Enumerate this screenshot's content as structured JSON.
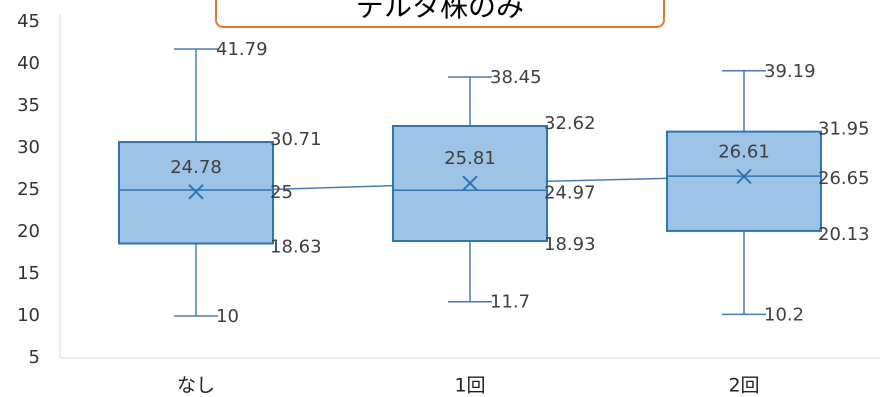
{
  "title": "デルタ株のみ",
  "chart_data": {
    "type": "box",
    "title": "デルタ株のみ",
    "xlabel": "",
    "ylabel": "",
    "ylim": [
      5,
      45
    ],
    "yticks": [
      5,
      10,
      15,
      20,
      25,
      30,
      35,
      40,
      45
    ],
    "grid": false,
    "categories": [
      "なし",
      "1回",
      "2回"
    ],
    "boxes": [
      {
        "category": "なし",
        "min": 10,
        "q1": 18.63,
        "median": 25,
        "q3": 30.71,
        "max": 41.79,
        "mean": 24.78
      },
      {
        "category": "1回",
        "min": 11.7,
        "q1": 18.93,
        "median": 24.97,
        "q3": 32.62,
        "max": 38.45,
        "mean": 25.81
      },
      {
        "category": "2回",
        "min": 10.2,
        "q1": 20.13,
        "median": 26.65,
        "q3": 31.95,
        "max": 39.19,
        "mean": 26.61
      }
    ],
    "mean_line": true,
    "colors": {
      "box_fill": "#9dc3e6",
      "box_stroke": "#2e75b6",
      "whisker": "#4a7ab3",
      "title_border": "#e07a2e"
    }
  }
}
